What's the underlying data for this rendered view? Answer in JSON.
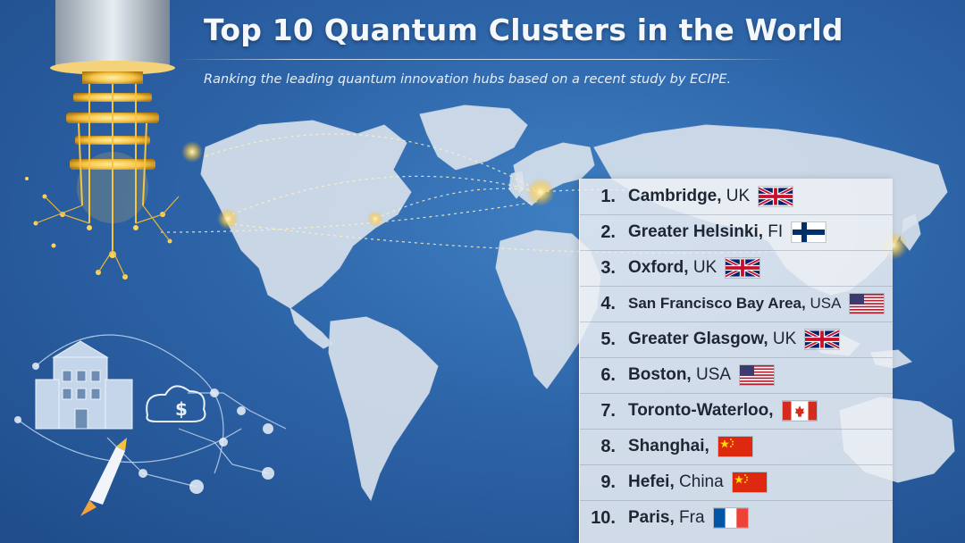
{
  "header": {
    "title": "Top 10 Quantum Clusters in the World",
    "subtitle": "Ranking the leading quantum innovation hubs based on a recent study by ECIPE."
  },
  "ranking": [
    {
      "rank": "1.",
      "city": "Cambridge,",
      "country": " UK",
      "flag": "uk-flag"
    },
    {
      "rank": "2.",
      "city": "Greater Helsinki,",
      "country": " FI",
      "flag": "finland-flag"
    },
    {
      "rank": "3.",
      "city": "Oxford,",
      "country": " UK",
      "flag": "uk-flag"
    },
    {
      "rank": "4.",
      "city": "San Francisco Bay Area,",
      "country": " USA",
      "flag": "usa-flag"
    },
    {
      "rank": "5.",
      "city": "Greater Glasgow,",
      "country": " UK",
      "flag": "uk-flag"
    },
    {
      "rank": "6.",
      "city": "Boston,",
      "country": " USA",
      "flag": "usa-flag"
    },
    {
      "rank": "7.",
      "city": "Toronto-Waterloo,",
      "country": "",
      "flag": "canada-flag"
    },
    {
      "rank": "8.",
      "city": "Shanghai,",
      "country": "",
      "flag": "china-flag"
    },
    {
      "rank": "9.",
      "city": "Hefei,",
      "country": " China",
      "flag": "china-flag"
    },
    {
      "rank": "10.",
      "city": "Paris,",
      "country": " Fra",
      "flag": "france-flag"
    }
  ],
  "colors": {
    "ocean": "#2d64a8",
    "land": "#dfe6ee",
    "gold": "#f5c242",
    "panel": "#ecf0f4"
  },
  "illustrations": [
    "quantum-computer-chandelier-icon",
    "building-icon",
    "cloud-dollar-icon",
    "rocket-icon",
    "network-nodes-icon"
  ]
}
